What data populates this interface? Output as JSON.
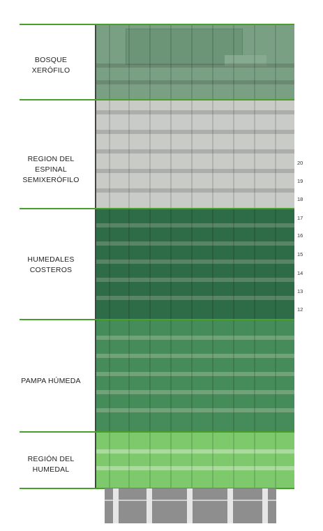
{
  "zones": [
    {
      "key": "bosque",
      "label_lines": [
        "BOSQUE",
        "XERÓFILO"
      ],
      "color": "#6f9a78"
    },
    {
      "key": "espinal",
      "label_lines": [
        "REGION DEL ESPINAL",
        "SEMIXERÓFILO"
      ],
      "color": "#c7c9c5"
    },
    {
      "key": "humedales",
      "label_lines": [
        "HUMEDALES",
        "COSTEROS"
      ],
      "color": "#2d6a45"
    },
    {
      "key": "pampa",
      "label_lines": [
        "PAMPA HÚMEDA"
      ],
      "color": "#438a58"
    },
    {
      "key": "humedal",
      "label_lines": [
        "REGIÓN DEL",
        "HUMEDAL"
      ],
      "color": "#7bc96a"
    }
  ],
  "floors": [
    "20",
    "19",
    "18",
    "17",
    "16",
    "15",
    "14",
    "13",
    "12"
  ],
  "colors": {
    "divider": "#4a9e2a"
  }
}
